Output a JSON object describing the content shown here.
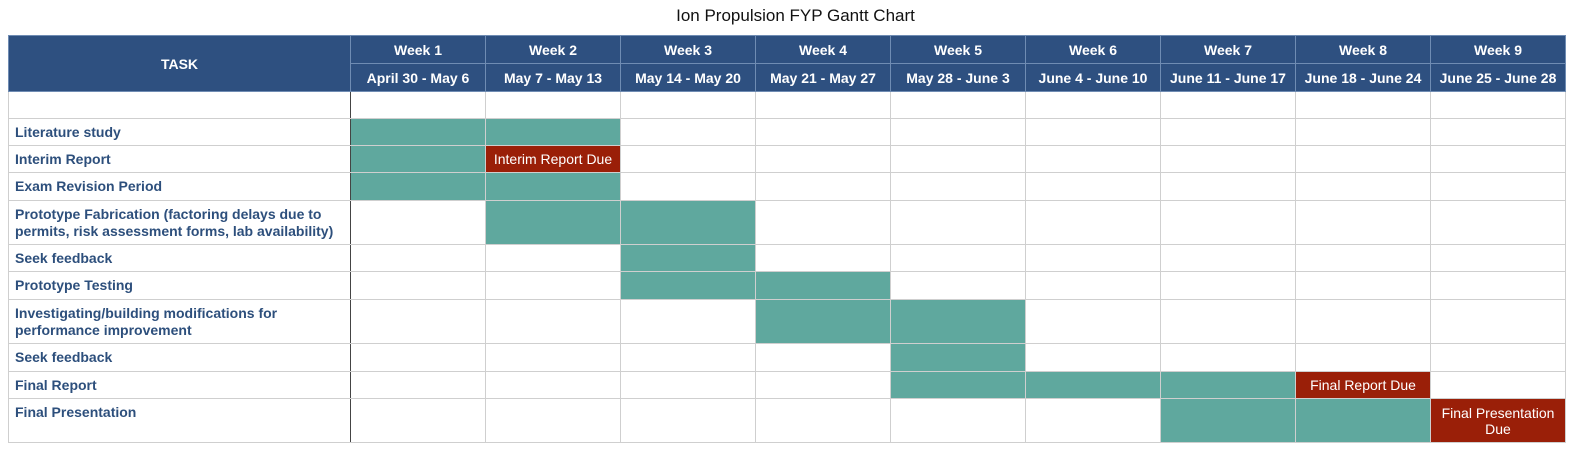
{
  "chart_data": {
    "type": "table",
    "title": "Ion Propulsion FYP Gantt Chart",
    "task_header": "TASK",
    "colors": {
      "header": "#2e5080",
      "bar": "#5fa89e",
      "due": "#9a1f08",
      "task_text": "#2d4f7c"
    },
    "weeks": [
      {
        "name": "Week 1",
        "dates": "April 30 - May 6"
      },
      {
        "name": "Week 2",
        "dates": "May 7 - May 13"
      },
      {
        "name": "Week 3",
        "dates": "May 14 - May 20"
      },
      {
        "name": "Week 4",
        "dates": "May 21 - May 27"
      },
      {
        "name": "Week 5",
        "dates": "May 28 - June 3"
      },
      {
        "name": "Week 6",
        "dates": "June 4 - June 10"
      },
      {
        "name": "Week 7",
        "dates": "June 11 - June 17"
      },
      {
        "name": "Week 8",
        "dates": "June 18 - June 24"
      },
      {
        "name": "Week 9",
        "dates": "June 25 - June 28"
      }
    ],
    "tasks": [
      {
        "name": "",
        "weeks": []
      },
      {
        "name": "Literature study",
        "weeks": [
          1,
          2
        ]
      },
      {
        "name": "Interim Report",
        "weeks": [
          1
        ],
        "milestone": {
          "week": 2,
          "label": "Interim Report Due"
        }
      },
      {
        "name": "Exam Revision Period",
        "weeks": [
          1,
          2
        ]
      },
      {
        "name": "Prototype Fabrication (factoring delays due to permits, risk assessment forms, lab availability)",
        "weeks": [
          2,
          3
        ]
      },
      {
        "name": "Seek feedback",
        "weeks": [
          3
        ]
      },
      {
        "name": "Prototype Testing",
        "weeks": [
          3,
          4
        ]
      },
      {
        "name": "Investigating/building modifications for performance improvement",
        "weeks": [
          4,
          5
        ]
      },
      {
        "name": "Seek feedback",
        "weeks": [
          5
        ]
      },
      {
        "name": "Final Report",
        "weeks": [
          5,
          6,
          7
        ],
        "milestone": {
          "week": 8,
          "label": "Final Report Due"
        }
      },
      {
        "name": "Final Presentation",
        "weeks": [
          7,
          8
        ],
        "milestone": {
          "week": 9,
          "label": "Final Presentation Due"
        }
      }
    ]
  }
}
